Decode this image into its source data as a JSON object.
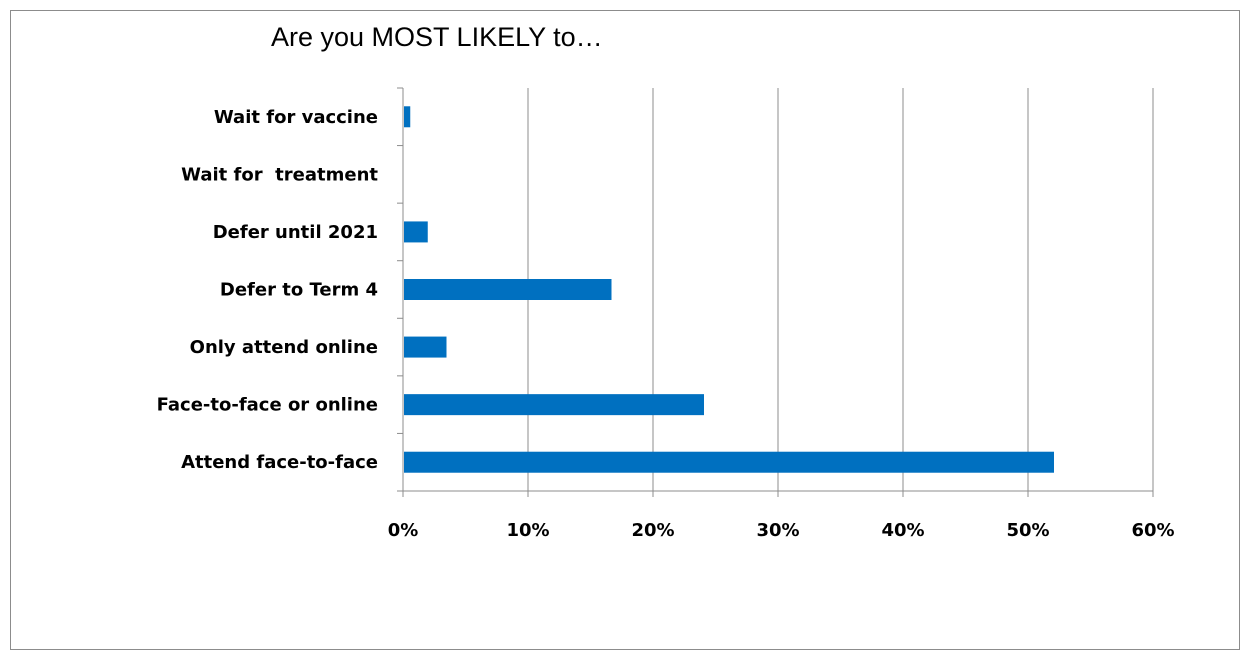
{
  "chart_data": {
    "type": "bar",
    "orientation": "horizontal",
    "title": "Are you MOST LIKELY to…",
    "categories": [
      "Attend face-to-face ",
      "Face-to-face or online",
      "Only attend online",
      "Defer to Term 4 ",
      "Defer until 2021 ",
      "Wait for  treatment",
      "Wait for vaccine"
    ],
    "values": [
      52,
      24,
      3.4,
      16.6,
      1.9,
      0,
      0.5
    ],
    "value_unit": "percent",
    "xlim": [
      0,
      60
    ],
    "x_ticks": [
      "0%",
      "10%",
      "20%",
      "30%",
      "40%",
      "50%",
      "60%"
    ],
    "grid": "vertical",
    "legend": "none",
    "bar_color": "#0070c0"
  }
}
